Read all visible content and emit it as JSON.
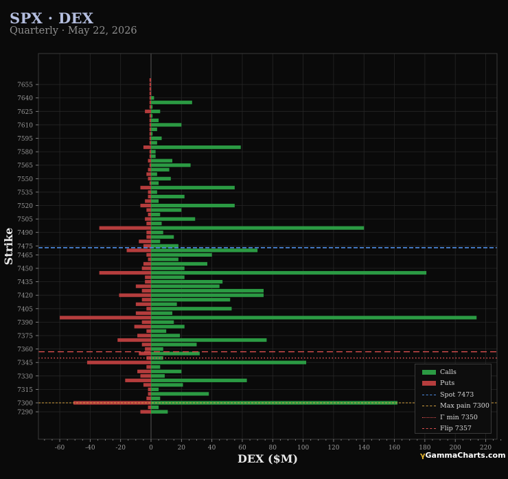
{
  "header": {
    "title": "SPX · DEX",
    "subtitle": "Quarterly · May 22, 2026"
  },
  "brand": {
    "mark": "γ",
    "name": "GammaCharts.com"
  },
  "colors": {
    "background": "#0a0a0a",
    "calls": "#2b9a43",
    "puts": "#b53d3d",
    "spot": "#4f8fe8",
    "max_pain": "#d4a040",
    "gamma_min": "#e05050",
    "flip": "#e05050",
    "grid": "#262626"
  },
  "chart_data": {
    "type": "bar",
    "orientation": "horizontal",
    "title": "",
    "xlabel": "DEX ($M)",
    "ylabel": "Strike",
    "xlim": [
      -75,
      230
    ],
    "ylim": [
      7282,
      7662
    ],
    "x_ticks": [
      -60,
      -40,
      -20,
      0,
      20,
      40,
      60,
      80,
      100,
      120,
      140,
      160,
      180,
      200,
      220
    ],
    "y_ticks": [
      7290,
      7300,
      7315,
      7330,
      7345,
      7360,
      7375,
      7390,
      7405,
      7420,
      7435,
      7450,
      7465,
      7475,
      7490,
      7505,
      7520,
      7535,
      7550,
      7565,
      7580,
      7595,
      7610,
      7625,
      7640,
      7655
    ],
    "grid": true,
    "legend_position": "bottom-right",
    "strikes": [
      7290,
      7295,
      7300,
      7305,
      7310,
      7315,
      7320,
      7325,
      7330,
      7335,
      7340,
      7345,
      7350,
      7355,
      7360,
      7365,
      7370,
      7375,
      7380,
      7385,
      7390,
      7395,
      7400,
      7405,
      7410,
      7415,
      7420,
      7425,
      7430,
      7435,
      7440,
      7445,
      7450,
      7455,
      7460,
      7465,
      7470,
      7475,
      7480,
      7485,
      7490,
      7495,
      7500,
      7505,
      7510,
      7515,
      7520,
      7525,
      7530,
      7535,
      7540,
      7545,
      7550,
      7555,
      7560,
      7565,
      7570,
      7575,
      7580,
      7585,
      7590,
      7595,
      7600,
      7605,
      7610,
      7615,
      7620,
      7625,
      7630,
      7635,
      7640,
      7645,
      7650,
      7655,
      7660
    ],
    "series": [
      {
        "name": "Calls",
        "values": [
          11,
          5,
          162,
          6,
          38,
          5,
          21,
          63,
          9,
          20,
          6,
          102,
          8,
          32,
          8,
          30,
          76,
          19,
          10,
          22,
          15,
          214,
          14,
          53,
          17,
          52,
          74,
          74,
          45,
          47,
          22,
          181,
          22,
          37,
          18,
          40,
          70,
          18,
          6,
          15,
          8,
          140,
          7,
          29,
          6,
          20,
          55,
          5,
          22,
          4,
          55,
          5,
          13,
          4,
          12,
          26,
          14,
          3,
          3,
          59,
          4,
          7,
          1,
          4,
          20,
          5,
          1,
          6,
          1,
          27,
          2,
          0,
          0,
          0,
          0
        ]
      },
      {
        "name": "Puts",
        "values": [
          -7,
          -2,
          -51,
          -3,
          -2,
          -2,
          -5,
          -17,
          -7,
          -9,
          -3,
          -42,
          -3,
          -8,
          -4,
          -6,
          -22,
          -9,
          -3,
          -11,
          -6,
          -60,
          -10,
          -3,
          -10,
          -6,
          -21,
          -6,
          -10,
          -4,
          -4,
          -34,
          -6,
          -5,
          -2,
          -3,
          -16,
          -5,
          -8,
          -3,
          -3,
          -34,
          -3,
          -4,
          -2,
          -3,
          -7,
          -4,
          -2,
          -2,
          -7,
          -1,
          -2,
          -3,
          -2,
          -1,
          -2,
          -1,
          -1,
          -5,
          -1,
          -1,
          -1,
          -1,
          -1,
          -1,
          -1,
          -4,
          -1,
          -1,
          -1,
          -1,
          -1,
          -1,
          -1
        ]
      }
    ],
    "lines": [
      {
        "name": "Spot 7473",
        "value": 7473,
        "style": "dashed"
      },
      {
        "name": "Max pain 7300",
        "value": 7300,
        "style": "dashed-fine"
      },
      {
        "name": "Γ min 7350",
        "value": 7350,
        "style": "dotted"
      },
      {
        "name": "Flip 7357",
        "value": 7357,
        "style": "dashed-long"
      }
    ],
    "legend": [
      "Calls",
      "Puts",
      "Spot 7473",
      "Max pain 7300",
      "Γ min 7350",
      "Flip 7357"
    ]
  }
}
